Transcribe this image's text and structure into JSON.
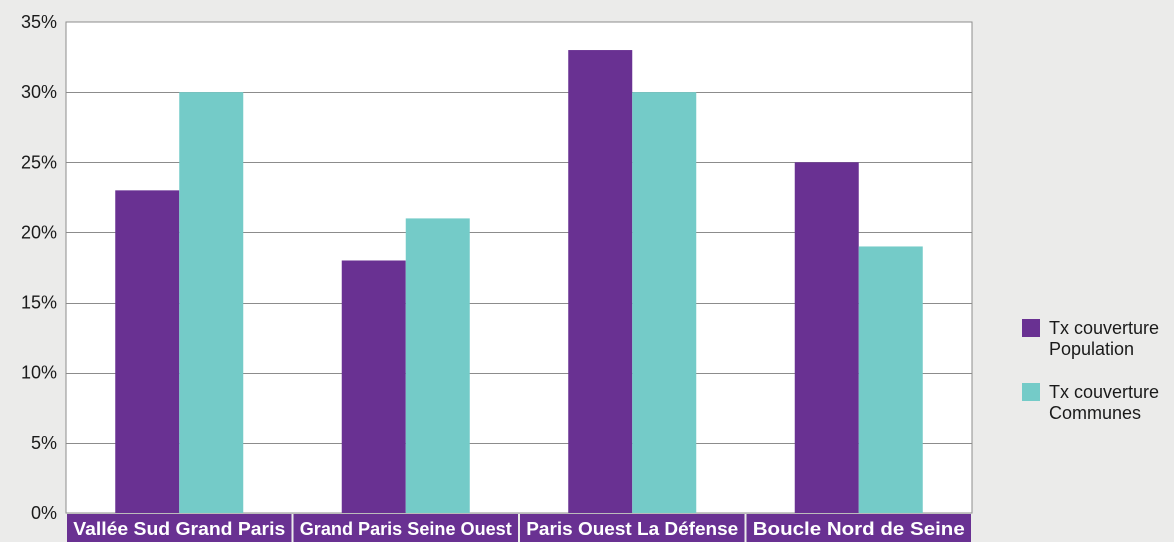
{
  "chart_data": {
    "type": "bar",
    "title": "",
    "xlabel": "",
    "ylabel": "",
    "categories": [
      "Vallée Sud Grand Paris",
      "Grand Paris Seine Ouest",
      "Paris Ouest La Défense",
      "Boucle Nord de Seine"
    ],
    "series": [
      {
        "name": "Tx couverture Population",
        "legend_label": "Tx couverture\nPopulation",
        "color": "#693192",
        "values": [
          23,
          18,
          33,
          25
        ]
      },
      {
        "name": "Tx couverture Communes",
        "legend_label": "Tx couverture\nCommunes",
        "color": "#74cbc8",
        "values": [
          30,
          21,
          30,
          19
        ]
      }
    ],
    "ylim": [
      0,
      35
    ],
    "yticks": [
      0,
      5,
      10,
      15,
      20,
      25,
      30,
      35
    ],
    "ytick_labels": [
      "0%",
      "5%",
      "10%",
      "15%",
      "20%",
      "25%",
      "30%",
      "35%"
    ],
    "grid": true,
    "legend_position": "right"
  }
}
